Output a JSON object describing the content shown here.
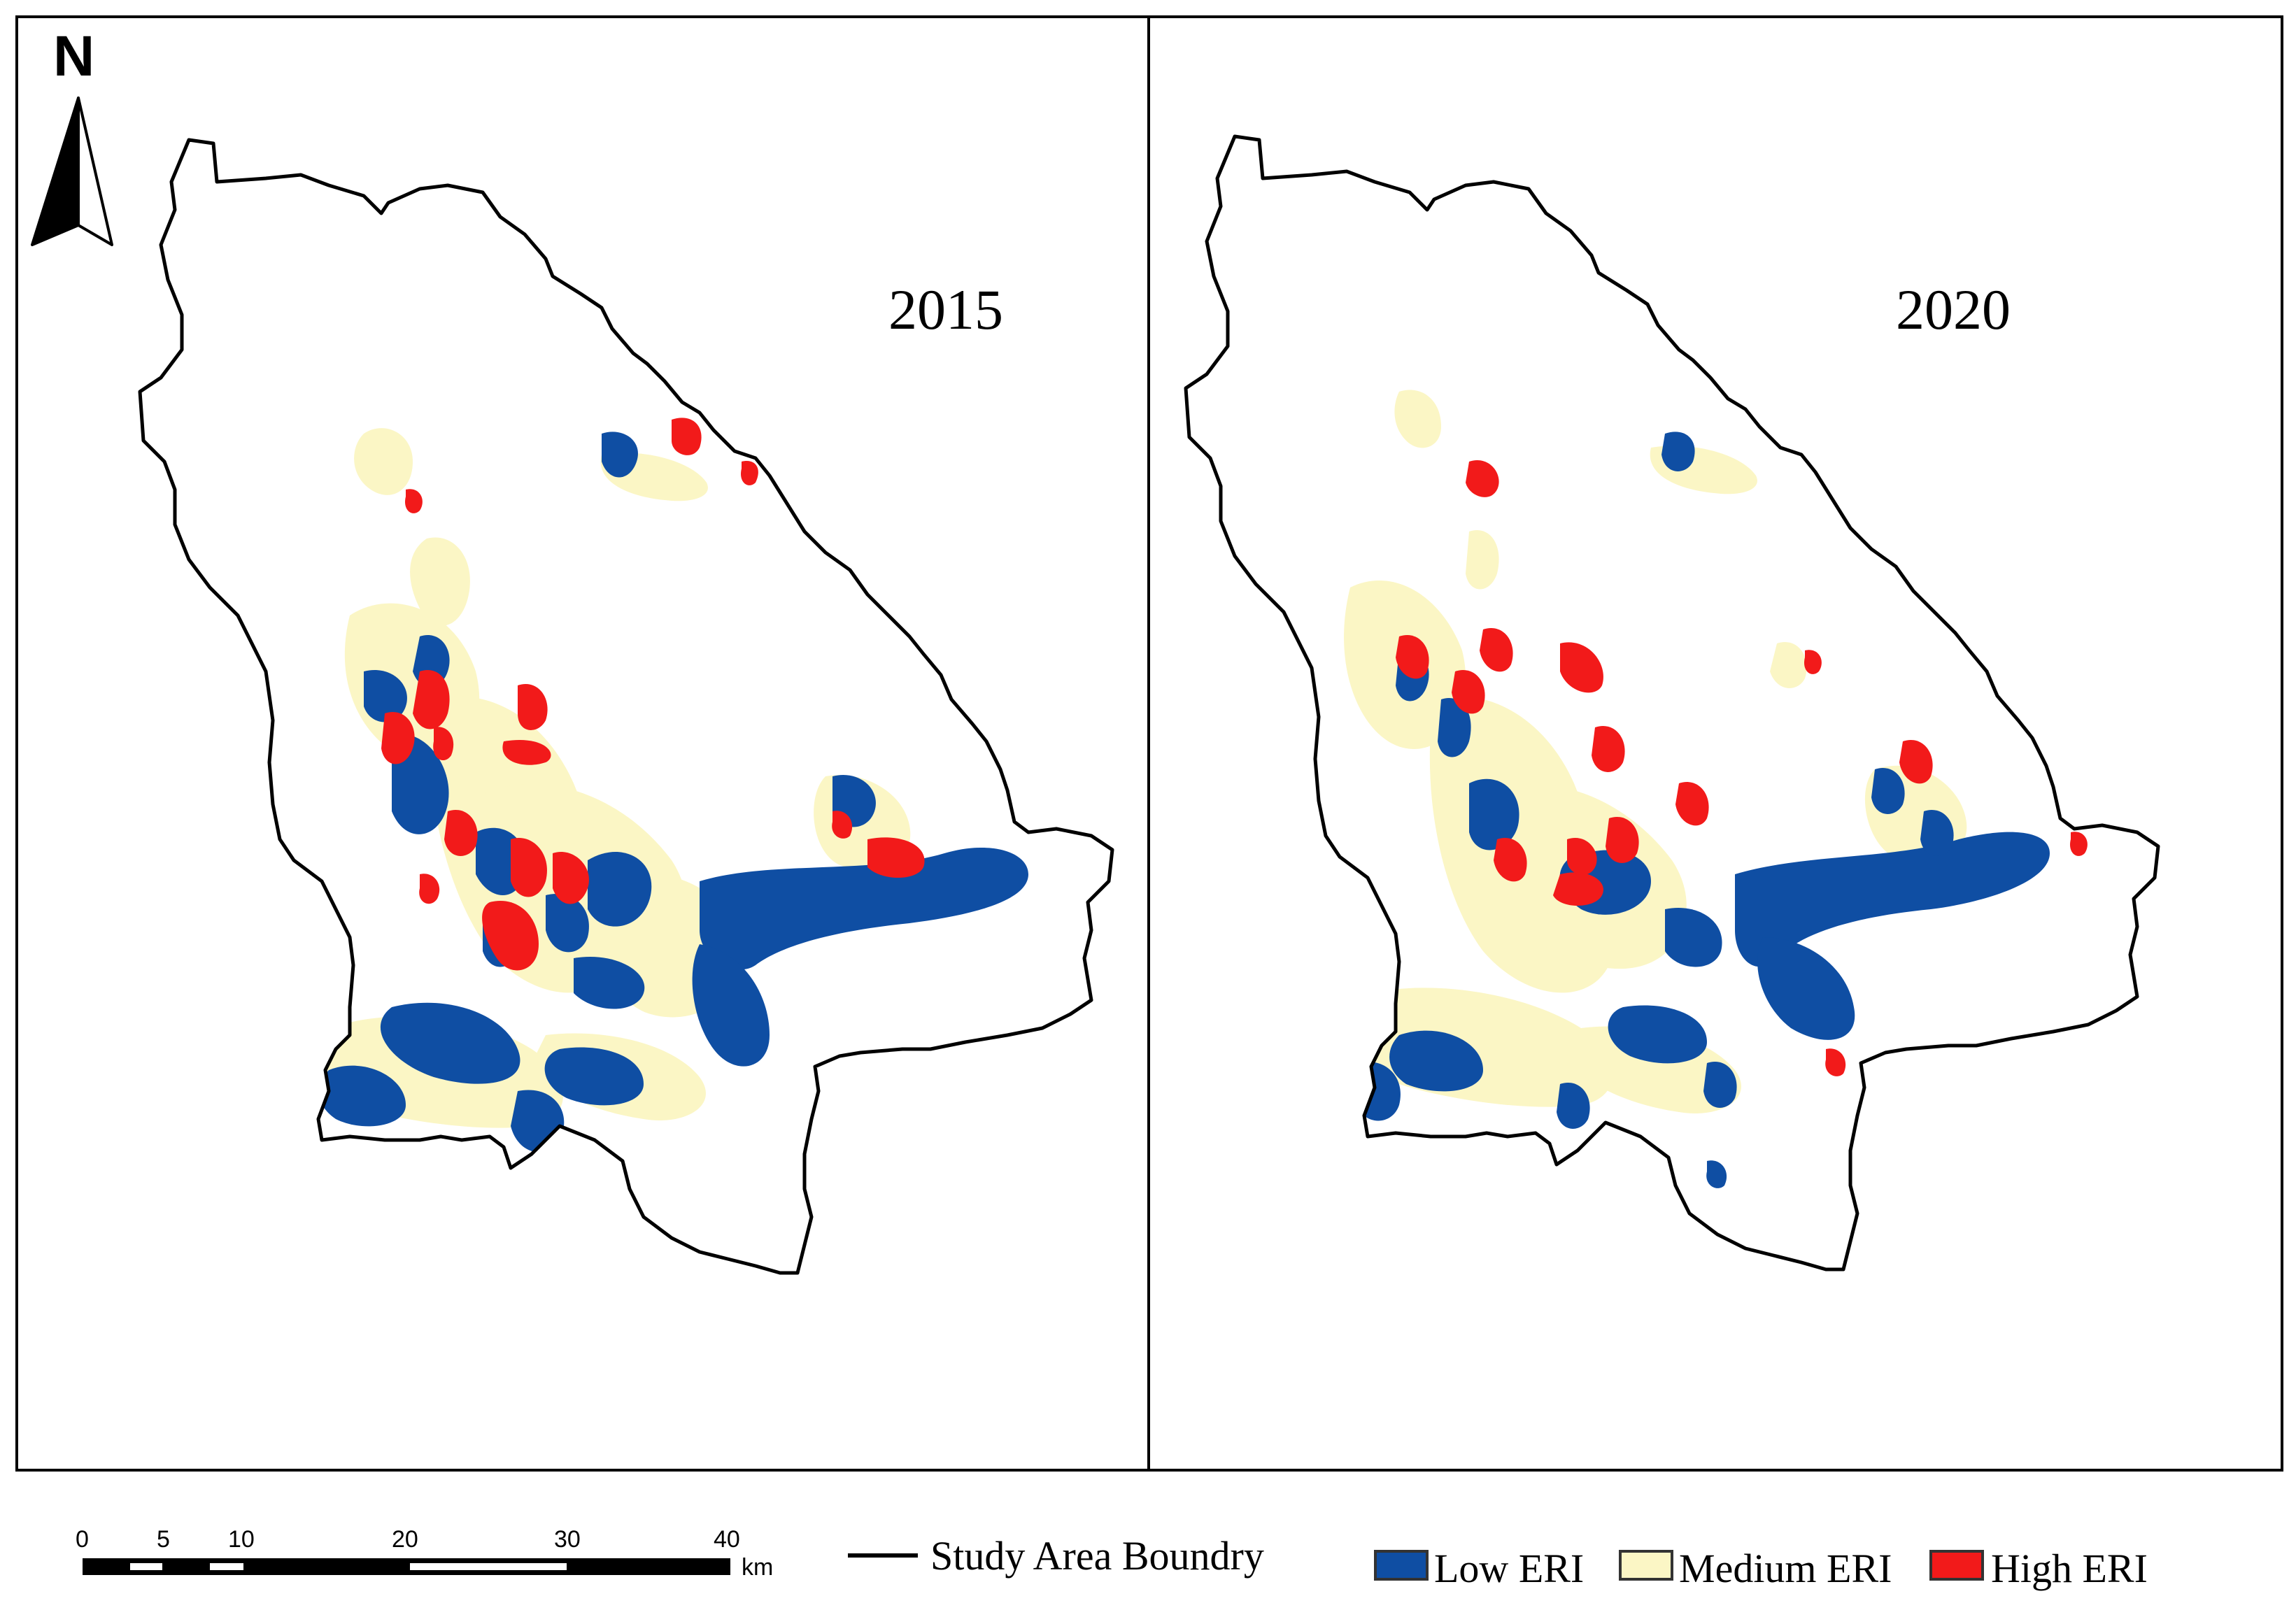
{
  "north_arrow": {
    "label": "N"
  },
  "panels": [
    {
      "year": "2015"
    },
    {
      "year": "2020"
    }
  ],
  "scale_bar": {
    "ticks": [
      "0",
      "5",
      "10",
      "20",
      "30",
      "40"
    ],
    "unit": "km"
  },
  "legend": {
    "boundary_label": "Study Area Boundry",
    "classes": [
      {
        "label": "Low ERI",
        "color": "#0f4ea3"
      },
      {
        "label": "Medium ERI",
        "color": "#fbf6c5"
      },
      {
        "label": "High ERI",
        "color": "#f21a1a"
      }
    ]
  }
}
